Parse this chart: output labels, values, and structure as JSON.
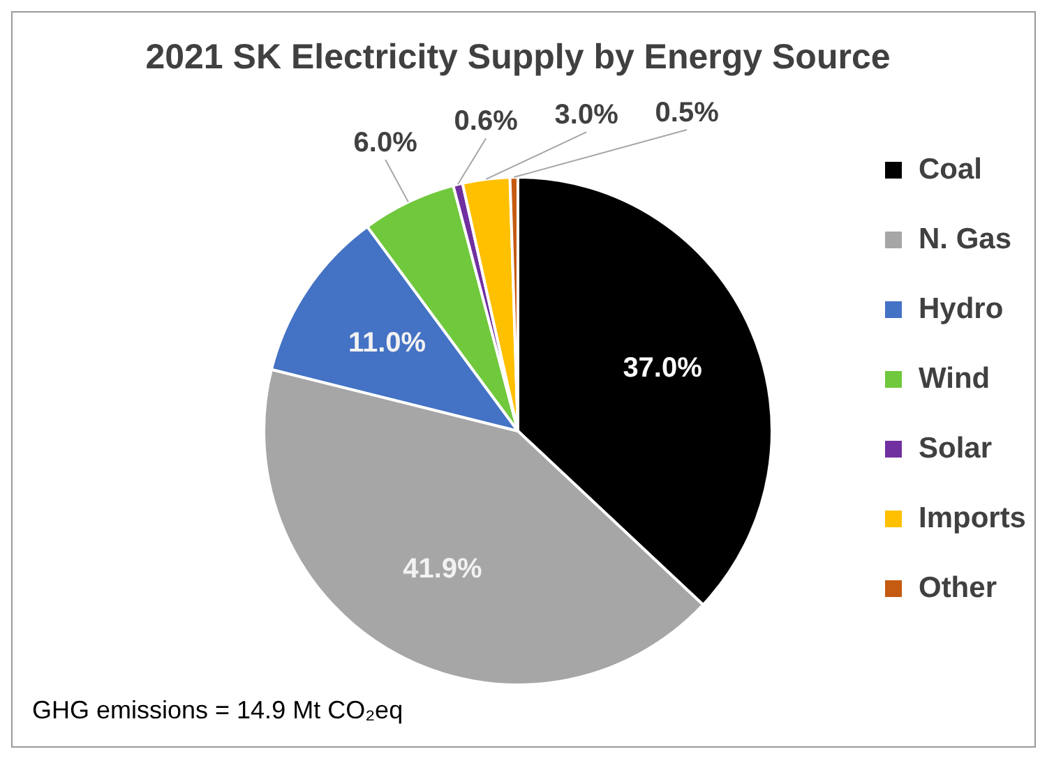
{
  "chart_data": {
    "type": "pie",
    "title": "2021 SK Electricity Supply by Energy Source",
    "categories": [
      "Coal",
      "N. Gas",
      "Hydro",
      "Wind",
      "Solar",
      "Imports",
      "Other"
    ],
    "values": [
      37.0,
      41.9,
      11.0,
      6.0,
      0.6,
      3.0,
      0.5
    ],
    "colors": [
      "#000000",
      "#a6a6a6",
      "#4472c4",
      "#70c83c",
      "#7030a0",
      "#ffc000",
      "#c55a11"
    ],
    "value_labels": [
      "37.0%",
      "41.9%",
      "11.0%",
      "6.0%",
      "0.6%",
      "3.0%",
      "0.5%"
    ],
    "legend": "right",
    "annotations": [
      "GHG emissions = 14.9 Mt CO₂eq"
    ]
  }
}
